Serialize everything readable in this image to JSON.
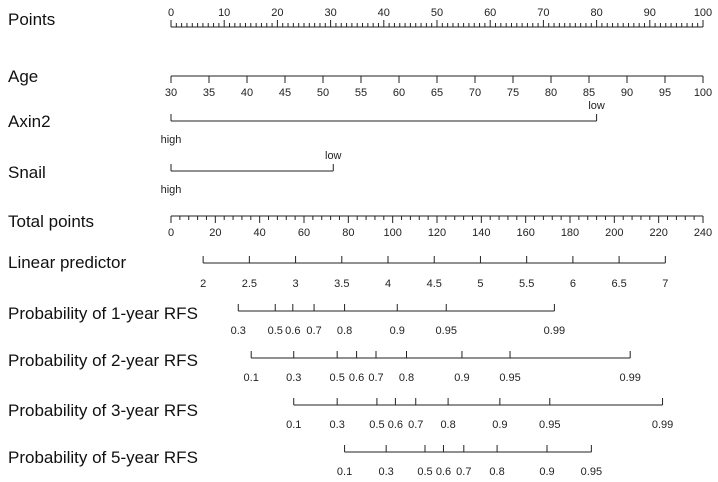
{
  "chart_data": {
    "type": "nomogram",
    "title": "",
    "rows": [
      {
        "label": "Points",
        "kind": "numeric",
        "ticks": [
          0,
          10,
          20,
          30,
          40,
          50,
          60,
          70,
          80,
          90,
          100
        ],
        "labels_position": "above",
        "minor_steps": 10
      },
      {
        "label": "Age",
        "kind": "numeric",
        "ticks": [
          30,
          35,
          40,
          45,
          50,
          55,
          60,
          65,
          70,
          75,
          80,
          85,
          90,
          95,
          100
        ],
        "labels_position": "below",
        "points_range": [
          0,
          100
        ]
      },
      {
        "label": "Axin2",
        "kind": "categorical",
        "levels": [
          {
            "name": "high",
            "points": 0,
            "label_position": "below"
          },
          {
            "name": "low",
            "points": 80,
            "label_position": "above"
          }
        ]
      },
      {
        "label": "Snail",
        "kind": "categorical",
        "levels": [
          {
            "name": "high",
            "points": 0,
            "label_position": "below"
          },
          {
            "name": "low",
            "points": 30.5,
            "label_position": "above"
          }
        ]
      },
      {
        "label": "Total points",
        "kind": "numeric",
        "ticks": [
          0,
          20,
          40,
          60,
          80,
          100,
          120,
          140,
          160,
          180,
          200,
          220,
          240
        ],
        "labels_position": "below",
        "minor_steps": 5
      },
      {
        "label": "Linear predictor",
        "kind": "numeric",
        "ticks": [
          2,
          2.5,
          3,
          3.5,
          4,
          4.5,
          5,
          5.5,
          6,
          6.5,
          7
        ],
        "labels_position": "below",
        "minor_steps": 2,
        "total_points_range": [
          14.5,
          223
        ]
      },
      {
        "label": "Probability of 1-year RFS",
        "kind": "probability",
        "ticks": [
          0.3,
          0.5,
          0.6,
          0.7,
          0.8,
          0.9,
          0.95,
          0.99
        ],
        "labels_position": "below",
        "linear_predictor_at_ticks": [
          2.38,
          2.78,
          2.97,
          3.2,
          3.53,
          4.1,
          4.63,
          5.8
        ]
      },
      {
        "label": "Probability of 2-year RFS",
        "kind": "probability",
        "ticks": [
          0.1,
          0.3,
          0.5,
          0.6,
          0.7,
          0.8,
          0.9,
          0.95,
          0.99
        ],
        "labels_position": "below",
        "linear_predictor_at_ticks": [
          2.52,
          2.98,
          3.45,
          3.66,
          3.87,
          4.2,
          4.8,
          5.32,
          6.62
        ]
      },
      {
        "label": "Probability of 3-year RFS",
        "kind": "probability",
        "ticks": [
          0.1,
          0.3,
          0.5,
          0.6,
          0.7,
          0.8,
          0.9,
          0.95,
          0.99
        ],
        "labels_position": "below",
        "linear_predictor_at_ticks": [
          2.98,
          3.45,
          3.88,
          4.08,
          4.3,
          4.65,
          5.21,
          5.75,
          6.97
        ]
      },
      {
        "label": "Probability of 5-year RFS",
        "kind": "probability",
        "ticks": [
          0.1,
          0.3,
          0.5,
          0.6,
          0.7,
          0.8,
          0.9,
          0.95
        ],
        "labels_position": "below",
        "linear_predictor_at_ticks": [
          3.53,
          3.98,
          4.4,
          4.6,
          4.82,
          5.18,
          5.72,
          6.2
        ]
      }
    ]
  }
}
